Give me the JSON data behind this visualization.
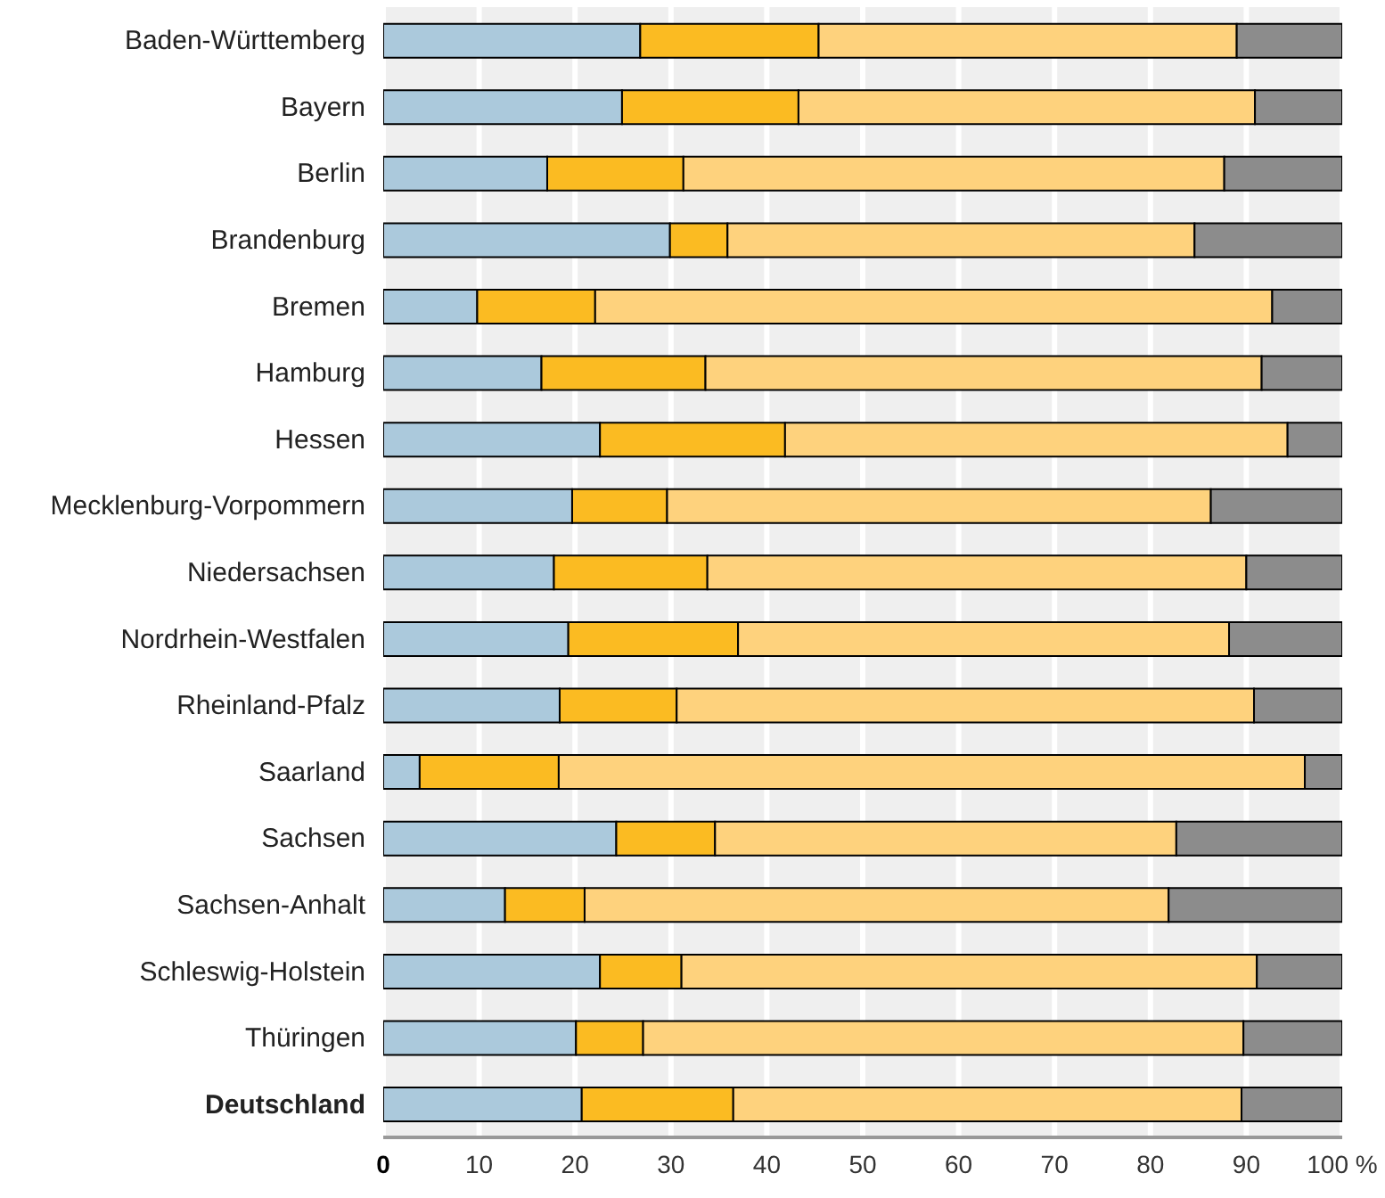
{
  "chart_data": {
    "type": "bar",
    "orientation": "horizontal",
    "stacked": true,
    "categories": [
      "Baden-Württemberg",
      "Bayern",
      "Berlin",
      "Brandenburg",
      "Bremen",
      "Hamburg",
      "Hessen",
      "Mecklenburg-Vorpommern",
      "Niedersachsen",
      "Nordrhein-Westfalen",
      "Rheinland-Pfalz",
      "Saarland",
      "Sachsen",
      "Sachsen-Anhalt",
      "Schleswig-Holstein",
      "Thüringen",
      "Deutschland"
    ],
    "series": [
      {
        "color": "#abc9dc",
        "values": [
          26.8,
          24.9,
          17.1,
          29.9,
          9.8,
          16.5,
          22.6,
          19.7,
          17.8,
          19.3,
          18.4,
          3.8,
          24.3,
          12.7,
          22.6,
          20.1,
          20.7
        ]
      },
      {
        "color": "#fbbb22",
        "values": [
          18.6,
          18.4,
          14.2,
          6.0,
          12.3,
          17.1,
          19.3,
          9.9,
          16.0,
          17.7,
          12.2,
          14.5,
          10.3,
          8.3,
          8.5,
          7.0,
          15.8
        ]
      },
      {
        "color": "#fed27d",
        "values": [
          43.6,
          47.6,
          56.4,
          48.7,
          70.6,
          58.0,
          52.4,
          56.7,
          56.2,
          51.2,
          60.2,
          77.8,
          48.1,
          60.9,
          60.0,
          62.6,
          53.0
        ]
      },
      {
        "color": "#8c8c8c",
        "values": [
          11.0,
          9.1,
          12.3,
          15.4,
          7.3,
          8.4,
          5.7,
          13.7,
          10.0,
          11.8,
          9.2,
          3.9,
          17.3,
          18.1,
          8.9,
          10.3,
          10.5
        ]
      }
    ],
    "xlim": [
      0,
      100
    ],
    "xticks": [
      0,
      10,
      20,
      30,
      40,
      50,
      60,
      70,
      80,
      90,
      {
        "value": 100,
        "label": "100 %"
      }
    ],
    "grid": "x",
    "legend": false
  }
}
